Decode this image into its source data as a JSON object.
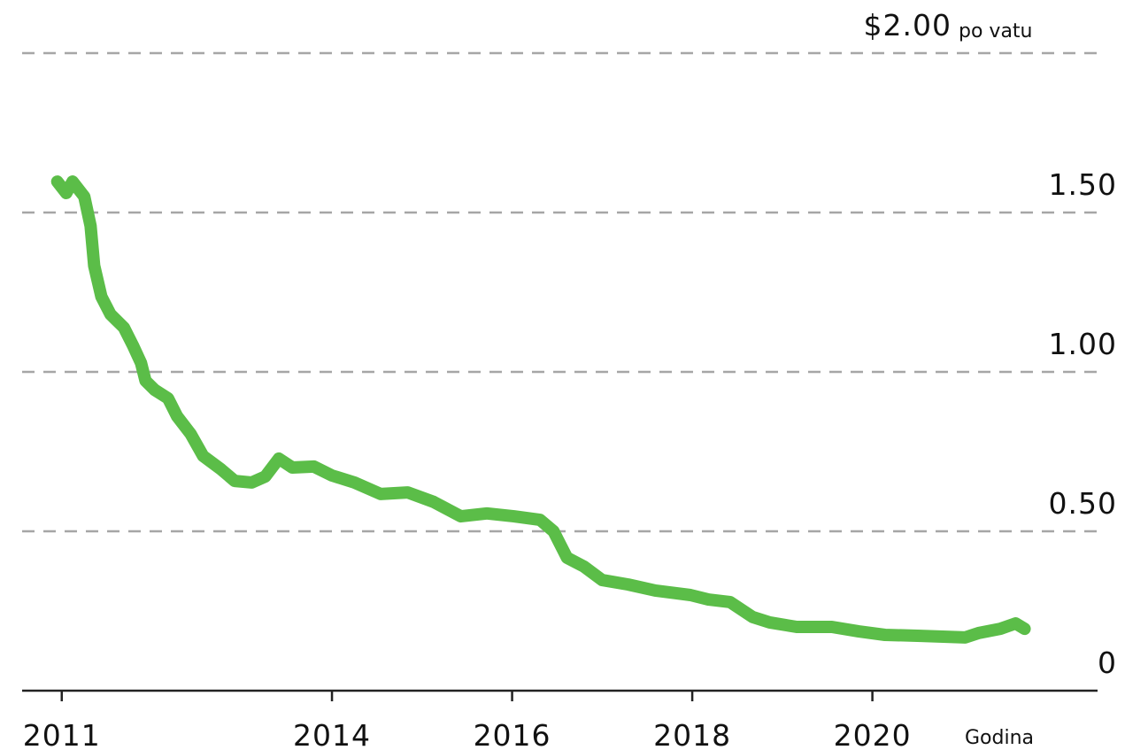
{
  "chart_data": {
    "type": "line",
    "y_label": "po vatu",
    "x_label": "Godina",
    "color": "#5bbd48",
    "grid": true,
    "x": [
      2010.95,
      2011.05,
      2011.12,
      2011.25,
      2011.32,
      2011.36,
      2011.44,
      2011.54,
      2011.69,
      2011.79,
      2011.88,
      2011.93,
      2012.03,
      2012.18,
      2012.28,
      2012.43,
      2012.57,
      2012.77,
      2012.92,
      2013.11,
      2013.26,
      2013.41,
      2013.56,
      2013.8,
      2014.0,
      2014.25,
      2014.54,
      2014.84,
      2015.13,
      2015.43,
      2015.72,
      2016.02,
      2016.31,
      2016.46,
      2016.61,
      2016.8,
      2017.0,
      2017.29,
      2017.59,
      2017.98,
      2018.18,
      2018.42,
      2018.67,
      2018.86,
      2019.16,
      2019.55,
      2019.85,
      2020.14,
      2020.54,
      2021.03,
      2021.18,
      2021.42,
      2021.59,
      2021.69
    ],
    "values": [
      1.597,
      1.561,
      1.597,
      1.55,
      1.458,
      1.333,
      1.236,
      1.181,
      1.139,
      1.083,
      1.028,
      0.972,
      0.944,
      0.917,
      0.861,
      0.806,
      0.736,
      0.694,
      0.658,
      0.653,
      0.672,
      0.728,
      0.7,
      0.703,
      0.675,
      0.653,
      0.617,
      0.622,
      0.592,
      0.547,
      0.556,
      0.547,
      0.536,
      0.5,
      0.417,
      0.389,
      0.347,
      0.333,
      0.314,
      0.3,
      0.286,
      0.278,
      0.231,
      0.214,
      0.2,
      0.2,
      0.186,
      0.175,
      0.172,
      0.167,
      0.181,
      0.194,
      0.211,
      0.194
    ],
    "xlim": [
      2010.56,
      2022.5
    ],
    "xticks": [
      2011,
      2014,
      2016,
      2018,
      2020
    ],
    "ylim": [
      0,
      2
    ],
    "yticks": [
      0,
      {
        "value": 0.5,
        "label": "0.50"
      },
      {
        "value": 1,
        "label": "1.00"
      },
      {
        "value": 1.5,
        "label": "1.50"
      },
      {
        "value": 2,
        "label": "$2.00"
      }
    ]
  }
}
